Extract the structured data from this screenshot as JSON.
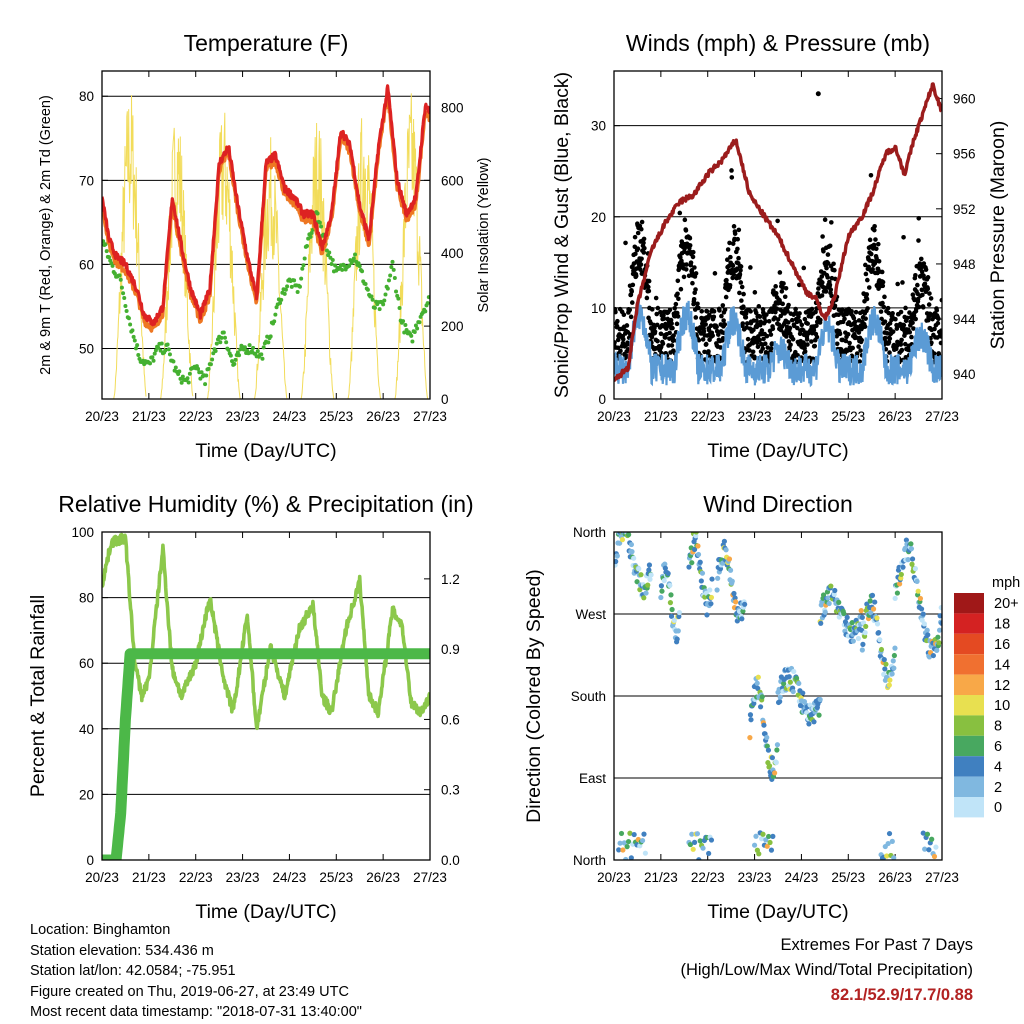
{
  "x_ticks": [
    "20/23",
    "21/23",
    "22/23",
    "23/23",
    "24/23",
    "25/23",
    "26/23",
    "27/23"
  ],
  "chart_data": [
    {
      "type": "line",
      "title": "Temperature (F)",
      "xlabel": "Time (Day/UTC)",
      "ylabel": "2m & 9m T (Red, Orange) & 2m Td (Green)",
      "y2label": "Solar Insolation (Yellow)",
      "ylim": [
        44,
        83
      ],
      "yticks": [
        "50",
        "60",
        "70",
        "80"
      ],
      "y2lim": [
        0,
        900
      ],
      "y2ticks": [
        "0",
        "200",
        "400",
        "600",
        "800"
      ],
      "colors": {
        "t2m": "#dd2222",
        "t9m": "#ee7722",
        "td": "#44b030",
        "solar": "#f2dc5a"
      },
      "series": [
        {
          "name": "2m T",
          "x": [
            0,
            0.15,
            0.3,
            0.5,
            0.75,
            0.9,
            1.1,
            1.3,
            1.5,
            1.7,
            1.9,
            2.1,
            2.3,
            2.5,
            2.7,
            2.9,
            3.1,
            3.3,
            3.5,
            3.7,
            3.9,
            4.1,
            4.3,
            4.5,
            4.7,
            4.9,
            5.1,
            5.3,
            5.5,
            5.7,
            5.9,
            6.1,
            6.3,
            6.5,
            6.7,
            6.9,
            7.0
          ],
          "values": [
            68,
            63,
            61,
            60,
            57,
            54,
            53,
            55,
            68,
            62,
            57,
            54,
            57,
            72,
            74,
            67,
            61,
            56,
            72,
            73,
            69,
            68,
            66,
            66,
            62,
            66,
            76,
            74,
            67,
            63,
            74,
            81,
            70,
            66,
            68,
            79,
            78
          ]
        },
        {
          "name": "2m Td",
          "x": [
            0,
            0.2,
            0.4,
            0.6,
            0.8,
            1.0,
            1.2,
            1.4,
            1.6,
            1.8,
            2.0,
            2.2,
            2.4,
            2.6,
            2.8,
            3.0,
            3.2,
            3.4,
            3.6,
            3.8,
            4.0,
            4.2,
            4.4,
            4.6,
            4.8,
            5.0,
            5.2,
            5.4,
            5.6,
            5.8,
            6.0,
            6.2,
            6.4,
            6.6,
            6.8,
            7.0
          ],
          "values": [
            63,
            60,
            58,
            53,
            49,
            48,
            50,
            50,
            47,
            46,
            48,
            46,
            50,
            52,
            48,
            50,
            50,
            49,
            52,
            56,
            58,
            57,
            63,
            66,
            62,
            59,
            60,
            61,
            58,
            55,
            55,
            60,
            53,
            51,
            54,
            56
          ]
        },
        {
          "name": "Solar Insolation",
          "peak_x": [
            0.6,
            1.6,
            2.6,
            3.6,
            4.6,
            5.6,
            6.6
          ],
          "peak_values": [
            870,
            820,
            810,
            720,
            790,
            830,
            850
          ]
        }
      ]
    },
    {
      "type": "scatter",
      "title": "Winds (mph) & Pressure (mb)",
      "xlabel": "Time (Day/UTC)",
      "ylabel": "Sonic/Prop Wind & Gust (Blue, Black)",
      "y2label": "Station Pressure (Maroon)",
      "ylim": [
        0,
        36
      ],
      "yticks": [
        "0",
        "10",
        "20",
        "30"
      ],
      "y2lim": [
        938.2,
        962
      ],
      "y2ticks": [
        "940",
        "944",
        "948",
        "952",
        "956",
        "960"
      ],
      "colors": {
        "wind": "#5b9bd5",
        "gust": "#000000",
        "pressure": "#9b1c1c"
      },
      "series": [
        {
          "name": "Station Pressure",
          "x": [
            0,
            0.3,
            0.5,
            0.8,
            1.1,
            1.4,
            1.7,
            2.0,
            2.3,
            2.6,
            2.9,
            3.2,
            3.5,
            3.8,
            4.1,
            4.3,
            4.5,
            4.7,
            5.0,
            5.3,
            5.5,
            5.8,
            6.0,
            6.2,
            6.4,
            6.6,
            6.8,
            7.0
          ],
          "values": [
            939.5,
            940.5,
            945,
            949,
            951,
            952.5,
            953,
            954.5,
            955.5,
            957,
            953,
            951.5,
            950,
            948,
            946,
            945.5,
            944,
            945.5,
            950,
            951.5,
            953,
            956,
            956.5,
            954.5,
            957,
            959,
            961,
            959
          ]
        },
        {
          "name": "Gust",
          "max_value": 33.5
        }
      ]
    },
    {
      "type": "line",
      "title": "Relative Humidity (%) & Precipitation (in)",
      "xlabel": "Time (Day/UTC)",
      "ylabel": "Percent & Total Rainfall",
      "ylim": [
        0,
        100
      ],
      "yticks": [
        "0",
        "20",
        "40",
        "60",
        "80",
        "100"
      ],
      "y2lim": [
        0,
        1.4
      ],
      "y2ticks": [
        "0.0",
        "0.3",
        "0.6",
        "0.9",
        "1.2"
      ],
      "colors": {
        "rh": "#8cc84b",
        "precip": "#4cb848"
      },
      "series": [
        {
          "name": "Relative Humidity",
          "x": [
            0,
            0.2,
            0.5,
            0.7,
            0.85,
            1.0,
            1.3,
            1.5,
            1.7,
            2.0,
            2.3,
            2.6,
            2.8,
            3.1,
            3.3,
            3.6,
            3.9,
            4.2,
            4.5,
            4.7,
            4.9,
            5.2,
            5.5,
            5.7,
            5.9,
            6.2,
            6.4,
            6.6,
            6.8,
            7.0
          ],
          "values": [
            84,
            97,
            98,
            60,
            50,
            55,
            95,
            58,
            50,
            60,
            80,
            55,
            45,
            75,
            40,
            65,
            50,
            70,
            78,
            50,
            45,
            70,
            85,
            50,
            45,
            76,
            72,
            48,
            45,
            50
          ]
        },
        {
          "name": "Total Precipitation",
          "x": [
            0,
            0.3,
            0.4,
            0.5,
            0.6,
            7.0
          ],
          "values": [
            0,
            0,
            0.2,
            0.6,
            0.88,
            0.88
          ]
        }
      ]
    },
    {
      "type": "scatter",
      "title": "Wind Direction",
      "xlabel": "Time (Day/UTC)",
      "ylabel": "Direction (Colored By Speed)",
      "ylim": [
        0,
        360
      ],
      "yticks": [
        "North",
        "East",
        "South",
        "West",
        "North"
      ],
      "legend": {
        "unit": "mph",
        "labels": [
          "20+",
          "18",
          "16",
          "14",
          "12",
          "10",
          "8",
          "6",
          "4",
          "2",
          "0"
        ],
        "colors": [
          "#a01818",
          "#d42222",
          "#e44a22",
          "#f07030",
          "#f8a848",
          "#e8e050",
          "#88c040",
          "#48a860",
          "#4080c0",
          "#80b8e0",
          "#c0e4f8"
        ]
      },
      "segments": [
        {
          "x": [
            0.0,
            0.8
          ],
          "dir": [
            300,
            360
          ]
        },
        {
          "x": [
            1.0,
            1.4
          ],
          "dir": [
            250,
            320
          ]
        },
        {
          "x": [
            1.6,
            2.1
          ],
          "dir": [
            280,
            350
          ]
        },
        {
          "x": [
            2.2,
            2.8
          ],
          "dir": [
            270,
            340
          ]
        },
        {
          "x": [
            2.9,
            3.5
          ],
          "dir": [
            100,
            190
          ]
        },
        {
          "x": [
            3.5,
            4.4
          ],
          "dir": [
            160,
            200
          ]
        },
        {
          "x": [
            4.4,
            5.3
          ],
          "dir": [
            250,
            290
          ]
        },
        {
          "x": [
            5.3,
            6.0
          ],
          "dir": [
            200,
            280
          ]
        },
        {
          "x": [
            6.0,
            7.0
          ],
          "dir": [
            230,
            340
          ]
        }
      ]
    }
  ],
  "info": [
    "Location: Binghamton",
    "Station elevation: 534.436 m",
    "Station lat/lon: 42.0584; -75.951",
    "Figure created on Thu, 2019-06-27, at 23:49 UTC",
    "Most recent data timestamp: \"2018-07-31 13:40:00\""
  ],
  "extremes": {
    "title": "Extremes For Past 7 Days",
    "subtitle": "(High/Low/Max Wind/Total Precipitation)",
    "values": "82.1/52.9/17.7/0.88"
  }
}
